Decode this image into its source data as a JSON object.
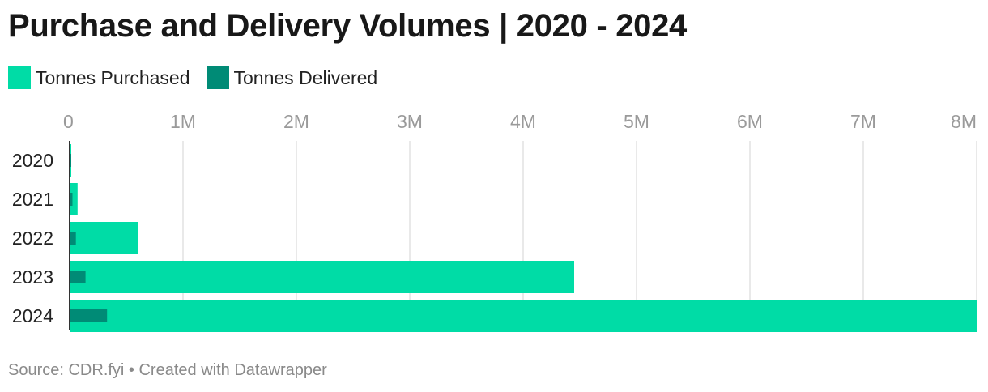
{
  "title": "Purchase and Delivery Volumes | 2020 - 2024",
  "legend": [
    {
      "label": "Tonnes Purchased",
      "color": "#00dca6"
    },
    {
      "label": "Tonnes Delivered",
      "color": "#008b76"
    }
  ],
  "footer": {
    "text": "Source: CDR.fyi • Created with Datawrapper"
  },
  "chart_data": {
    "type": "bar",
    "orientation": "horizontal",
    "title": "Purchase and Delivery Volumes | 2020 - 2024",
    "categories": [
      "2020",
      "2021",
      "2022",
      "2023",
      "2024"
    ],
    "series": [
      {
        "name": "Tonnes Purchased",
        "color": "#00dca6",
        "values": [
          10000,
          70000,
          600000,
          4450000,
          8000000
        ]
      },
      {
        "name": "Tonnes Delivered",
        "color": "#008b76",
        "values": [
          5000,
          25000,
          55000,
          140000,
          330000
        ]
      }
    ],
    "xlim": [
      0,
      8000000
    ],
    "x_ticks": [
      0,
      1000000,
      2000000,
      3000000,
      4000000,
      5000000,
      6000000,
      7000000,
      8000000
    ],
    "x_tick_labels": [
      "0",
      "1M",
      "2M",
      "3M",
      "4M",
      "5M",
      "6M",
      "7M",
      "8M"
    ],
    "xlabel": "",
    "ylabel": "",
    "grid": true,
    "axis_position": "top"
  }
}
